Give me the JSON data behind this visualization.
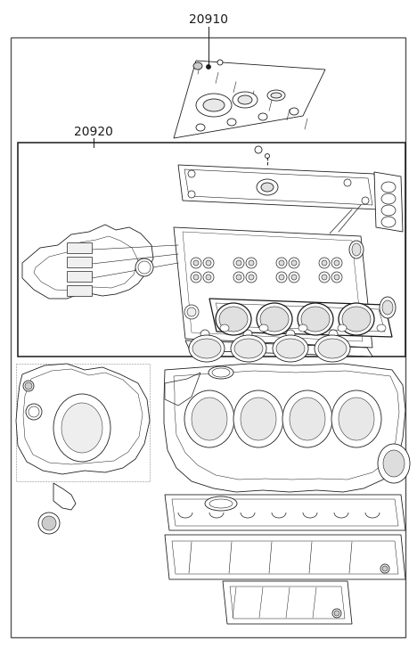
{
  "label_20910": "20910",
  "label_20920": "20920",
  "bg_color": "#ffffff",
  "line_color": "#1a1a1a",
  "text_color": "#1a1a1a",
  "fig_width": 4.68,
  "fig_height": 7.27,
  "dpi": 100
}
